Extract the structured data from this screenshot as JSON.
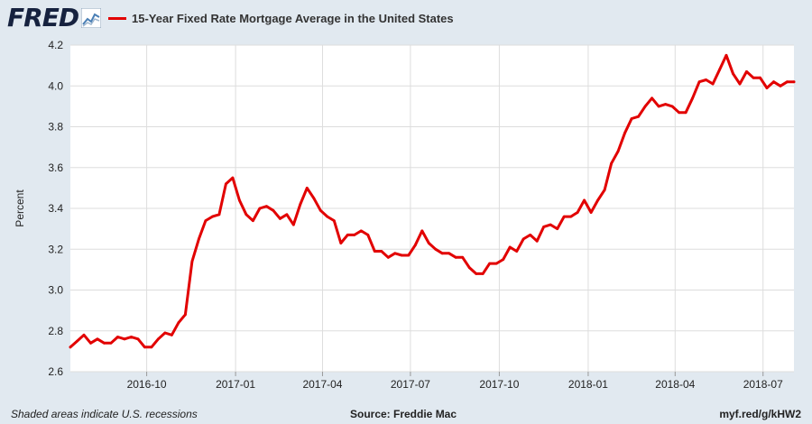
{
  "header": {
    "logo_text": "FRED",
    "logo_icon": "fred-graph-icon"
  },
  "colors": {
    "series": "#e20000",
    "plot_background": "#ffffff",
    "page_background": "#e1e9f0",
    "grid": "#dddddd"
  },
  "chart_data": {
    "type": "line",
    "title": "",
    "xlabel": "",
    "ylabel": "Percent",
    "ylim": [
      2.6,
      4.2
    ],
    "yticks": [
      2.6,
      2.8,
      3.0,
      3.2,
      3.4,
      3.6,
      3.8,
      4.0,
      4.2
    ],
    "ytick_labels": [
      "2.6",
      "2.8",
      "3.0",
      "3.2",
      "3.4",
      "3.6",
      "3.8",
      "4.0",
      "4.2"
    ],
    "xlim": [
      "2016-07-14",
      "2018-08-02"
    ],
    "xticks": [
      "2016-10-01",
      "2017-01-01",
      "2017-04-01",
      "2017-07-01",
      "2017-10-01",
      "2018-01-01",
      "2018-04-01",
      "2018-07-01"
    ],
    "xtick_labels": [
      "2016-10",
      "2017-01",
      "2017-04",
      "2017-07",
      "2017-10",
      "2018-01",
      "2018-04",
      "2018-07"
    ],
    "grid": true,
    "legend_position": "top-left",
    "series": [
      {
        "name": "15-Year Fixed Rate Mortgage Average in the United States",
        "color": "#e20000",
        "x": [
          "2016-07-14",
          "2016-07-21",
          "2016-07-28",
          "2016-08-04",
          "2016-08-11",
          "2016-08-18",
          "2016-08-25",
          "2016-09-01",
          "2016-09-08",
          "2016-09-15",
          "2016-09-22",
          "2016-09-29",
          "2016-10-06",
          "2016-10-13",
          "2016-10-20",
          "2016-10-27",
          "2016-11-03",
          "2016-11-10",
          "2016-11-17",
          "2016-11-24",
          "2016-12-01",
          "2016-12-08",
          "2016-12-15",
          "2016-12-22",
          "2016-12-29",
          "2017-01-05",
          "2017-01-12",
          "2017-01-19",
          "2017-01-26",
          "2017-02-02",
          "2017-02-09",
          "2017-02-16",
          "2017-02-23",
          "2017-03-02",
          "2017-03-09",
          "2017-03-16",
          "2017-03-23",
          "2017-03-30",
          "2017-04-06",
          "2017-04-13",
          "2017-04-20",
          "2017-04-27",
          "2017-05-04",
          "2017-05-11",
          "2017-05-18",
          "2017-05-25",
          "2017-06-01",
          "2017-06-08",
          "2017-06-15",
          "2017-06-22",
          "2017-06-29",
          "2017-07-06",
          "2017-07-13",
          "2017-07-20",
          "2017-07-27",
          "2017-08-03",
          "2017-08-10",
          "2017-08-17",
          "2017-08-24",
          "2017-08-31",
          "2017-09-07",
          "2017-09-14",
          "2017-09-21",
          "2017-09-28",
          "2017-10-05",
          "2017-10-12",
          "2017-10-19",
          "2017-10-26",
          "2017-11-02",
          "2017-11-09",
          "2017-11-16",
          "2017-11-23",
          "2017-11-30",
          "2017-12-07",
          "2017-12-14",
          "2017-12-21",
          "2017-12-28",
          "2018-01-04",
          "2018-01-11",
          "2018-01-18",
          "2018-01-25",
          "2018-02-01",
          "2018-02-08",
          "2018-02-15",
          "2018-02-22",
          "2018-03-01",
          "2018-03-08",
          "2018-03-15",
          "2018-03-22",
          "2018-03-29",
          "2018-04-05",
          "2018-04-12",
          "2018-04-19",
          "2018-04-26",
          "2018-05-03",
          "2018-05-10",
          "2018-05-17",
          "2018-05-24",
          "2018-05-31",
          "2018-06-07",
          "2018-06-14",
          "2018-06-21",
          "2018-06-28",
          "2018-07-05",
          "2018-07-12",
          "2018-07-19",
          "2018-07-26",
          "2018-08-02"
        ],
        "values": [
          2.72,
          2.75,
          2.78,
          2.74,
          2.76,
          2.74,
          2.74,
          2.77,
          2.76,
          2.77,
          2.76,
          2.72,
          2.72,
          2.76,
          2.79,
          2.78,
          2.84,
          2.88,
          3.14,
          3.25,
          3.34,
          3.36,
          3.37,
          3.52,
          3.55,
          3.44,
          3.37,
          3.34,
          3.4,
          3.41,
          3.39,
          3.35,
          3.37,
          3.32,
          3.42,
          3.5,
          3.45,
          3.39,
          3.36,
          3.34,
          3.23,
          3.27,
          3.27,
          3.29,
          3.27,
          3.19,
          3.19,
          3.16,
          3.18,
          3.17,
          3.17,
          3.22,
          3.29,
          3.23,
          3.2,
          3.18,
          3.18,
          3.16,
          3.16,
          3.11,
          3.08,
          3.08,
          3.13,
          3.13,
          3.15,
          3.21,
          3.19,
          3.25,
          3.27,
          3.24,
          3.31,
          3.32,
          3.3,
          3.36,
          3.36,
          3.38,
          3.44,
          3.38,
          3.44,
          3.49,
          3.62,
          3.68,
          3.77,
          3.84,
          3.85,
          3.9,
          3.94,
          3.9,
          3.91,
          3.9,
          3.87,
          3.87,
          3.94,
          4.02,
          4.03,
          4.01,
          4.08,
          4.15,
          4.06,
          4.01,
          4.07,
          4.04,
          4.04,
          3.99,
          4.02,
          4.0,
          4.02,
          4.02
        ]
      }
    ]
  },
  "footer": {
    "note": "Shaded areas indicate U.S. recessions",
    "source": "Source: Freddie Mac",
    "url": "myf.red/g/kHW2"
  }
}
